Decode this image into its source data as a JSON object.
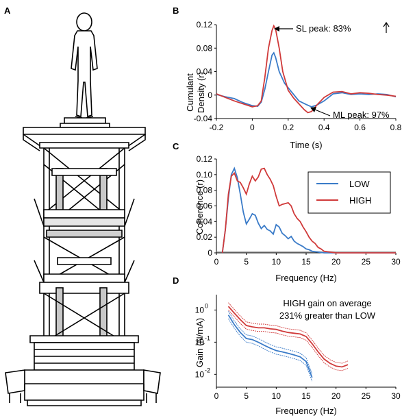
{
  "panels": {
    "a": {
      "label": "A"
    },
    "b": {
      "label": "B"
    },
    "c": {
      "label": "C"
    },
    "d": {
      "label": "D"
    }
  },
  "colors": {
    "low": "#3a7bc8",
    "high": "#d03a3a",
    "gray": "#bbbbbb"
  },
  "chart_data": [
    {
      "id": "B",
      "type": "line",
      "xlabel": "Time (s)",
      "ylabel_lines": [
        "Cumulant",
        "Density (r)"
      ],
      "xlim": [
        -0.2,
        0.8
      ],
      "ylim": [
        -0.04,
        0.12
      ],
      "xticks": [
        "-0.2",
        "0",
        "0.2",
        "0.4",
        "0.6",
        "0.8"
      ],
      "xtick_values": [
        -0.2,
        0,
        0.2,
        0.4,
        0.6,
        0.8
      ],
      "yticks": [
        "-0.04",
        "0",
        "0.04",
        "0.08",
        "0.12"
      ],
      "ytick_values": [
        -0.04,
        0,
        0.04,
        0.08,
        0.12
      ],
      "annotations": [
        "SL peak: 83%",
        "ML peak: 97%"
      ],
      "series": [
        {
          "key": "low",
          "x": [
            -0.2,
            -0.15,
            -0.1,
            -0.05,
            0,
            0.03,
            0.05,
            0.07,
            0.09,
            0.11,
            0.12,
            0.13,
            0.15,
            0.18,
            0.22,
            0.26,
            0.3,
            0.33,
            0.36,
            0.4,
            0.45,
            0.5,
            0.55,
            0.6,
            0.65,
            0.7,
            0.75,
            0.8
          ],
          "values": [
            0.001,
            -0.003,
            -0.006,
            -0.013,
            -0.018,
            -0.019,
            -0.012,
            0.01,
            0.04,
            0.068,
            0.072,
            0.064,
            0.04,
            0.02,
            0.005,
            -0.01,
            -0.016,
            -0.02,
            -0.017,
            -0.01,
            0.002,
            0.004,
            0.001,
            0.002,
            0.001,
            0.002,
            0.001,
            -0.003
          ]
        },
        {
          "key": "high",
          "x": [
            -0.2,
            -0.15,
            -0.1,
            -0.05,
            0,
            0.03,
            0.05,
            0.07,
            0.09,
            0.11,
            0.12,
            0.13,
            0.15,
            0.17,
            0.2,
            0.23,
            0.26,
            0.29,
            0.31,
            0.33,
            0.36,
            0.4,
            0.45,
            0.5,
            0.55,
            0.6,
            0.65,
            0.7,
            0.75,
            0.8
          ],
          "values": [
            0.002,
            -0.004,
            -0.01,
            -0.015,
            -0.02,
            -0.018,
            -0.01,
            0.03,
            0.08,
            0.11,
            0.118,
            0.112,
            0.08,
            0.04,
            0.008,
            -0.005,
            -0.015,
            -0.025,
            -0.03,
            -0.028,
            -0.017,
            -0.004,
            0.005,
            0.006,
            0.002,
            0.004,
            0.003,
            0.001,
            0.0,
            -0.002
          ]
        }
      ]
    },
    {
      "id": "C",
      "type": "line",
      "xlabel": "Frequency (Hz)",
      "ylabel": "Coherence (r)",
      "xlim": [
        0,
        30
      ],
      "ylim": [
        0,
        0.12
      ],
      "xticks": [
        "0",
        "5",
        "10",
        "15",
        "20",
        "25",
        "30"
      ],
      "xtick_values": [
        0,
        5,
        10,
        15,
        20,
        25,
        30
      ],
      "yticks": [
        "0",
        "0.02",
        "0.04",
        "0.06",
        "0.08",
        "0.10",
        "0.12"
      ],
      "ytick_values": [
        0,
        0.02,
        0.04,
        0.06,
        0.08,
        0.1,
        0.12
      ],
      "legend": [
        "LOW",
        "HIGH"
      ],
      "legend_position": "top-right",
      "series": [
        {
          "key": "low",
          "x": [
            1,
            1.5,
            2,
            2.5,
            3,
            3.5,
            4,
            4.5,
            5,
            5.5,
            6,
            6.5,
            7,
            7.5,
            8,
            8.5,
            9,
            9.5,
            10,
            10.5,
            11,
            11.5,
            12,
            12.5,
            13,
            13.5,
            14,
            14.5,
            15,
            15.5,
            16,
            17,
            18,
            20,
            25,
            30
          ],
          "values": [
            0.0,
            0.03,
            0.07,
            0.1,
            0.108,
            0.096,
            0.075,
            0.052,
            0.037,
            0.043,
            0.05,
            0.048,
            0.038,
            0.031,
            0.035,
            0.03,
            0.028,
            0.024,
            0.036,
            0.033,
            0.025,
            0.022,
            0.018,
            0.021,
            0.015,
            0.012,
            0.01,
            0.008,
            0.005,
            0.004,
            0.002,
            0.001,
            0.0,
            0.0,
            0.0,
            0.0
          ]
        },
        {
          "key": "high",
          "x": [
            1,
            1.5,
            2,
            2.5,
            3,
            3.5,
            4,
            4.5,
            5,
            5.5,
            6,
            6.5,
            7,
            7.5,
            8,
            8.5,
            9,
            9.5,
            10,
            10.5,
            11,
            11.5,
            12,
            12.5,
            13,
            13.5,
            14,
            14.5,
            15,
            15.5,
            16,
            16.5,
            17,
            17.5,
            18,
            19,
            20,
            22,
            25,
            30
          ],
          "values": [
            0.0,
            0.03,
            0.075,
            0.098,
            0.102,
            0.092,
            0.09,
            0.083,
            0.075,
            0.088,
            0.098,
            0.092,
            0.097,
            0.107,
            0.108,
            0.1,
            0.094,
            0.086,
            0.072,
            0.06,
            0.062,
            0.063,
            0.064,
            0.06,
            0.05,
            0.044,
            0.04,
            0.033,
            0.027,
            0.02,
            0.015,
            0.012,
            0.007,
            0.005,
            0.002,
            0.001,
            0.0,
            0.0,
            0.0,
            0.0
          ]
        }
      ]
    },
    {
      "id": "D",
      "type": "line",
      "xlabel": "Frequency (Hz)",
      "ylabel": "Gain (N/mA)",
      "yscale": "log",
      "xlim": [
        0,
        30
      ],
      "ylim": [
        0.004,
        3
      ],
      "xticks": [
        "0",
        "5",
        "10",
        "15",
        "20",
        "25",
        "30"
      ],
      "xtick_values": [
        0,
        5,
        10,
        15,
        20,
        25,
        30
      ],
      "ytick_bases": [
        "10",
        "10",
        "10"
      ],
      "ytick_exps": [
        "0",
        "-1",
        "-2"
      ],
      "ytick_values": [
        1,
        0.1,
        0.01
      ],
      "annotation_lines": [
        "HIGH gain on average",
        "231% greater than LOW"
      ],
      "series": [
        {
          "key": "low",
          "x": [
            2,
            3,
            4,
            5,
            6,
            7,
            8,
            9,
            10,
            11,
            12,
            13,
            14,
            15,
            16
          ],
          "values": [
            0.7,
            0.35,
            0.2,
            0.13,
            0.12,
            0.1,
            0.08,
            0.065,
            0.055,
            0.05,
            0.045,
            0.04,
            0.035,
            0.025,
            0.008
          ],
          "band_ratio": 1.3
        },
        {
          "key": "high",
          "x": [
            2,
            3,
            4,
            5,
            6,
            7,
            8,
            9,
            10,
            11,
            12,
            13,
            14,
            15,
            16,
            17,
            18,
            19,
            20,
            21,
            22
          ],
          "values": [
            1.3,
            0.8,
            0.5,
            0.33,
            0.3,
            0.28,
            0.28,
            0.26,
            0.25,
            0.22,
            0.2,
            0.19,
            0.18,
            0.15,
            0.09,
            0.05,
            0.03,
            0.022,
            0.018,
            0.017,
            0.02
          ],
          "band_ratio": 1.3
        }
      ]
    }
  ]
}
